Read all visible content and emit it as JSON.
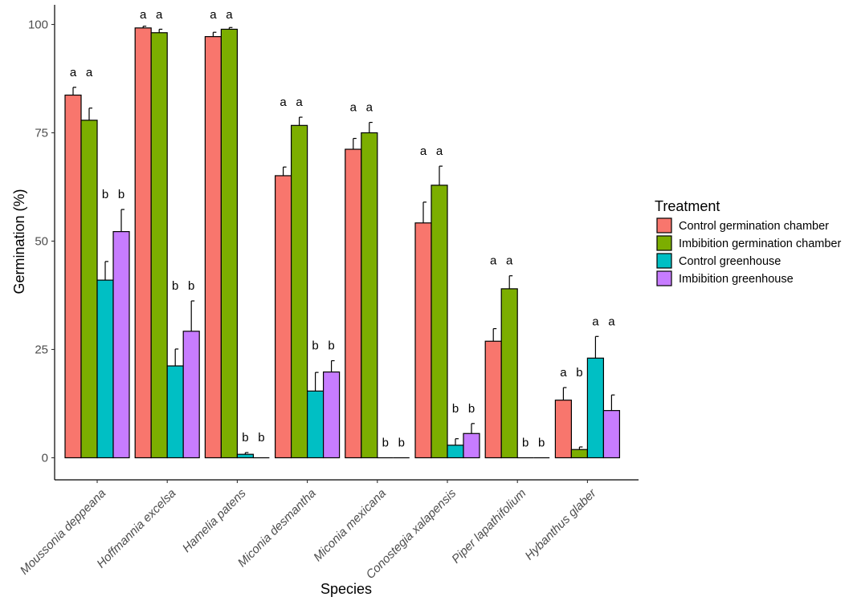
{
  "chart_data": {
    "type": "bar",
    "xlabel": "Species",
    "ylabel": "Germination (%)",
    "ylim": [
      -5,
      104
    ],
    "yticks": [
      0,
      25,
      50,
      75,
      100
    ],
    "categories": [
      "Moussonia deppeana",
      "Hoffmannia excelsa",
      "Hamelia patens",
      "Miconia desmantha",
      "Miconia mexicana",
      "Conostegia xalapensis",
      "Piper lapathifolium",
      "Hybanthus glaber"
    ],
    "legend_title": "Treatment",
    "legend_position": "right",
    "series": [
      {
        "name": "Control germination chamber",
        "color": "#F8766D",
        "values": [
          83.7,
          99.2,
          97.2,
          65.1,
          71.2,
          54.2,
          26.9,
          13.3
        ],
        "errors": [
          1.8,
          0.4,
          1.0,
          2.0,
          2.5,
          4.8,
          2.9,
          2.9
        ],
        "labels": [
          "a",
          "a",
          "a",
          "a",
          "a",
          "a",
          "a",
          "a"
        ]
      },
      {
        "name": "Imbibition germination chamber",
        "color": "#7CAE00",
        "values": [
          77.9,
          98.1,
          98.9,
          76.7,
          75.0,
          62.9,
          39.0,
          1.9
        ],
        "errors": [
          2.8,
          0.8,
          0.4,
          1.9,
          2.4,
          4.4,
          3.0,
          0.6
        ],
        "labels": [
          "a",
          "a",
          "a",
          "a",
          "a",
          "a",
          "a",
          "b"
        ]
      },
      {
        "name": "Control greenhouse",
        "color": "#00BFC4",
        "values": [
          41.0,
          21.2,
          0.8,
          15.4,
          0,
          2.9,
          0,
          23.0
        ],
        "errors": [
          4.3,
          3.9,
          0.4,
          4.3,
          0,
          1.5,
          0,
          5.0
        ],
        "labels": [
          "b",
          "b",
          "b",
          "b",
          "b",
          "b",
          "b",
          "a"
        ]
      },
      {
        "name": "Imbibition greenhouse",
        "color": "#C77CFF",
        "values": [
          52.2,
          29.2,
          0,
          19.8,
          0,
          5.6,
          0,
          10.9
        ],
        "errors": [
          5.1,
          7.0,
          0,
          2.6,
          0,
          2.3,
          0,
          3.6
        ],
        "labels": [
          "b",
          "b",
          "b",
          "b",
          "b",
          "b",
          "b",
          "a"
        ]
      }
    ]
  }
}
